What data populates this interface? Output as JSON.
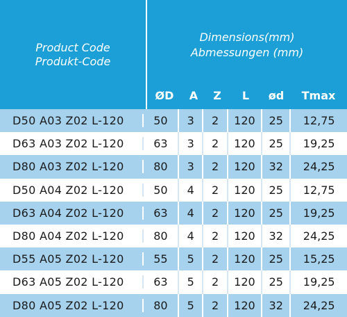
{
  "header": {
    "product_code_en": "Product Code",
    "product_code_de": "Produkt-Code",
    "dimensions_en": "Dimensions(mm)",
    "dimensions_de": "Abmessungen (mm)"
  },
  "columns": [
    "ØD",
    "A",
    "Z",
    "L",
    "ød",
    "Tmax"
  ],
  "rows": [
    {
      "code": "D50 A03 Z02 L-120",
      "OD": "50",
      "A": "3",
      "Z": "2",
      "L": "120",
      "od": "25",
      "Tmax": "12,75"
    },
    {
      "code": "D63 A03 Z02 L-120",
      "OD": "63",
      "A": "3",
      "Z": "2",
      "L": "120",
      "od": "25",
      "Tmax": "19,25"
    },
    {
      "code": "D80 A03 Z02 L-120",
      "OD": "80",
      "A": "3",
      "Z": "2",
      "L": "120",
      "od": "32",
      "Tmax": "24,25"
    },
    {
      "code": "D50 A04 Z02 L-120",
      "OD": "50",
      "A": "4",
      "Z": "2",
      "L": "120",
      "od": "25",
      "Tmax": "12,75"
    },
    {
      "code": "D63 A04 Z02 L-120",
      "OD": "63",
      "A": "4",
      "Z": "2",
      "L": "120",
      "od": "25",
      "Tmax": "19,25"
    },
    {
      "code": "D80 A04 Z02 L-120",
      "OD": "80",
      "A": "4",
      "Z": "2",
      "L": "120",
      "od": "32",
      "Tmax": "24,25"
    },
    {
      "code": "D55 A05 Z02 L-120",
      "OD": "55",
      "A": "5",
      "Z": "2",
      "L": "120",
      "od": "25",
      "Tmax": "15,25"
    },
    {
      "code": "D63 A05 Z02 L-120",
      "OD": "63",
      "A": "5",
      "Z": "2",
      "L": "120",
      "od": "25",
      "Tmax": "19,25"
    },
    {
      "code": "D80 A05 Z02 L-120",
      "OD": "80",
      "A": "5",
      "Z": "2",
      "L": "120",
      "od": "32",
      "Tmax": "24,25"
    }
  ]
}
